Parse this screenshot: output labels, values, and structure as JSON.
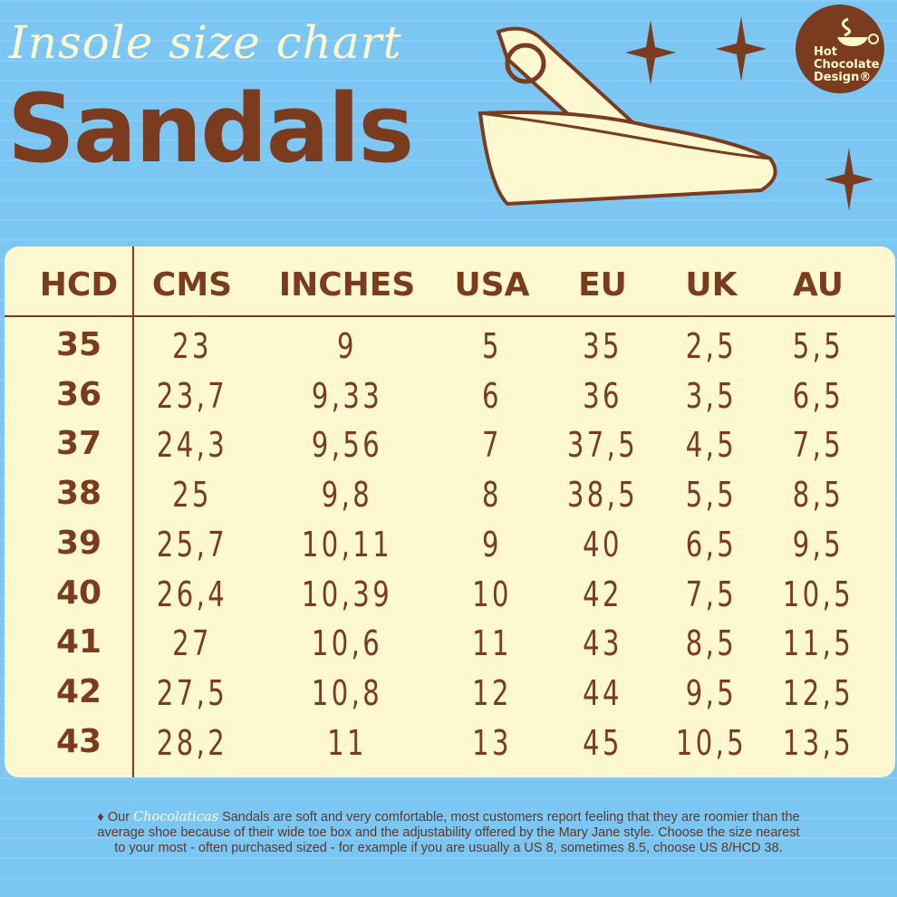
{
  "header": {
    "subtitle": "Insole size chart",
    "title": "Sandals"
  },
  "logo": {
    "line1": "Hot",
    "line2": "Chocolate",
    "line3": "Design®"
  },
  "colors": {
    "background": "#7cc6f4",
    "brown": "#7a3b1f",
    "cream": "#fdf8d0"
  },
  "table": {
    "columns": [
      "HCD",
      "CMS",
      "INCHES",
      "USA",
      "EU",
      "UK",
      "AU"
    ],
    "rows": [
      [
        "35",
        "23",
        "9",
        "5",
        "35",
        "2,5",
        "5,5"
      ],
      [
        "36",
        "23,7",
        "9,33",
        "6",
        "36",
        "3,5",
        "6,5"
      ],
      [
        "37",
        "24,3",
        "9,56",
        "7",
        "37,5",
        "4,5",
        "7,5"
      ],
      [
        "38",
        "25",
        "9,8",
        "8",
        "38,5",
        "5,5",
        "8,5"
      ],
      [
        "39",
        "25,7",
        "10,11",
        "9",
        "40",
        "6,5",
        "9,5"
      ],
      [
        "40",
        "26,4",
        "10,39",
        "10",
        "42",
        "7,5",
        "10,5"
      ],
      [
        "41",
        "27",
        "10,6",
        "11",
        "43",
        "8,5",
        "11,5"
      ],
      [
        "42",
        "27,5",
        "10,8",
        "12",
        "44",
        "9,5",
        "12,5"
      ],
      [
        "43",
        "28,2",
        "11",
        "13",
        "45",
        "10,5",
        "13,5"
      ]
    ]
  },
  "footer": {
    "bullet": "♦ Our",
    "brand": "Chocolaticas",
    "text": "Sandals are soft and very comfortable, most customers report feeling that they are roomier than the average shoe because of their wide toe box and the adjustability offered by the Mary Jane style. Choose the size nearest to your most - often  purchased sized - for example if you are usually a US 8, sometimes 8.5, choose US 8/HCD 38."
  }
}
